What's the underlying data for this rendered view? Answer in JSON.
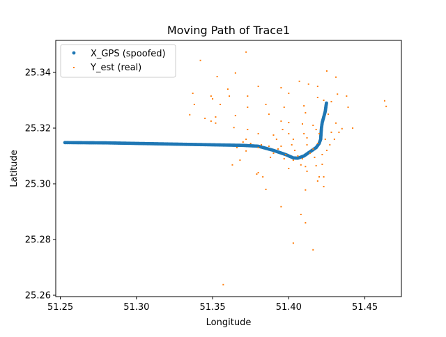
{
  "chart_data": {
    "type": "scatter",
    "title": "Moving Path of Trace1",
    "xlabel": "Longitude",
    "ylabel": "Latitude",
    "xlim": [
      51.247,
      51.474
    ],
    "ylim": [
      25.2595,
      25.3515
    ],
    "xticks": [
      "51.25",
      "51.30",
      "51.35",
      "51.40",
      "51.45"
    ],
    "yticks": [
      "25.26",
      "25.28",
      "25.30",
      "25.32",
      "25.34"
    ],
    "grid": false,
    "legend_position": "top-left",
    "series": [
      {
        "name": "X_GPS (spoofed)",
        "color": "#1f77b4",
        "marker": "circle",
        "polyline": [
          [
            51.253,
            25.3148
          ],
          [
            51.28,
            25.3147
          ],
          [
            51.3,
            25.3145
          ],
          [
            51.33,
            25.3142
          ],
          [
            51.35,
            25.314
          ],
          [
            51.37,
            25.3138
          ],
          [
            51.38,
            25.3135
          ],
          [
            51.39,
            25.312
          ],
          [
            51.398,
            25.3105
          ],
          [
            51.403,
            25.3093
          ],
          [
            51.406,
            25.3092
          ],
          [
            51.41,
            25.31
          ],
          [
            51.414,
            25.3115
          ],
          [
            51.418,
            25.313
          ],
          [
            51.42,
            25.3145
          ],
          [
            51.421,
            25.316
          ],
          [
            51.4212,
            25.318
          ],
          [
            51.4215,
            25.32
          ],
          [
            51.422,
            25.322
          ],
          [
            51.423,
            25.324
          ],
          [
            51.424,
            25.326
          ],
          [
            51.4245,
            25.328
          ],
          [
            51.4248,
            25.329
          ]
        ]
      },
      {
        "name": "Y_est (real)",
        "color": "#ff7f0e",
        "marker": "square",
        "points": [
          [
            51.372,
            25.3473
          ],
          [
            51.342,
            25.3443
          ],
          [
            51.365,
            25.3398
          ],
          [
            51.353,
            25.3385
          ],
          [
            51.431,
            25.3383
          ],
          [
            51.425,
            25.3405
          ],
          [
            51.407,
            25.3368
          ],
          [
            51.413,
            25.3358
          ],
          [
            51.36,
            25.334
          ],
          [
            51.38,
            25.335
          ],
          [
            51.395,
            25.3345
          ],
          [
            51.419,
            25.335
          ],
          [
            51.438,
            25.3315
          ],
          [
            51.463,
            25.3298
          ],
          [
            51.464,
            25.3278
          ],
          [
            51.337,
            25.3325
          ],
          [
            51.35,
            25.3305
          ],
          [
            51.349,
            25.3315
          ],
          [
            51.361,
            25.3315
          ],
          [
            51.373,
            25.3315
          ],
          [
            51.4,
            25.3325
          ],
          [
            51.419,
            25.331
          ],
          [
            51.423,
            25.33
          ],
          [
            51.432,
            25.3322
          ],
          [
            51.338,
            25.3285
          ],
          [
            51.355,
            25.3285
          ],
          [
            51.373,
            25.3275
          ],
          [
            51.385,
            25.3285
          ],
          [
            51.397,
            25.3275
          ],
          [
            51.41,
            25.328
          ],
          [
            51.428,
            25.3295
          ],
          [
            51.439,
            25.3275
          ],
          [
            51.335,
            25.3248
          ],
          [
            51.345,
            25.3235
          ],
          [
            51.352,
            25.324
          ],
          [
            51.365,
            25.3245
          ],
          [
            51.387,
            25.325
          ],
          [
            51.411,
            25.3255
          ],
          [
            51.426,
            25.325
          ],
          [
            51.349,
            25.3225
          ],
          [
            51.352,
            25.3218
          ],
          [
            51.395,
            25.3225
          ],
          [
            51.4,
            25.322
          ],
          [
            51.409,
            25.3215
          ],
          [
            51.416,
            25.321
          ],
          [
            51.431,
            25.3218
          ],
          [
            51.364,
            25.3202
          ],
          [
            51.373,
            25.3195
          ],
          [
            51.396,
            25.3195
          ],
          [
            51.418,
            25.3195
          ],
          [
            51.435,
            25.3198
          ],
          [
            51.442,
            25.32
          ],
          [
            51.38,
            25.318
          ],
          [
            51.39,
            25.3175
          ],
          [
            51.4,
            25.318
          ],
          [
            51.41,
            25.318
          ],
          [
            51.42,
            25.318
          ],
          [
            51.428,
            25.3185
          ],
          [
            51.433,
            25.3185
          ],
          [
            51.372,
            25.316
          ],
          [
            51.392,
            25.316
          ],
          [
            51.403,
            25.316
          ],
          [
            51.412,
            25.3165
          ],
          [
            51.424,
            25.316
          ],
          [
            51.43,
            25.316
          ],
          [
            51.37,
            25.315
          ],
          [
            51.375,
            25.3145
          ],
          [
            51.382,
            25.314
          ],
          [
            51.387,
            25.3135
          ],
          [
            51.395,
            25.3135
          ],
          [
            51.402,
            25.314
          ],
          [
            51.412,
            25.314
          ],
          [
            51.419,
            25.3145
          ],
          [
            51.427,
            25.314
          ],
          [
            51.366,
            25.313
          ],
          [
            51.38,
            25.313
          ],
          [
            51.393,
            25.3125
          ],
          [
            51.404,
            25.312
          ],
          [
            51.416,
            25.3125
          ],
          [
            51.425,
            25.312
          ],
          [
            51.372,
            25.3118
          ],
          [
            51.39,
            25.311
          ],
          [
            51.398,
            25.3105
          ],
          [
            51.406,
            25.31
          ],
          [
            51.414,
            25.311
          ],
          [
            51.422,
            25.3105
          ],
          [
            51.388,
            25.3095
          ],
          [
            51.397,
            25.309
          ],
          [
            51.403,
            25.3085
          ],
          [
            51.409,
            25.309
          ],
          [
            51.417,
            25.3095
          ],
          [
            51.368,
            25.3085
          ],
          [
            51.363,
            25.3068
          ],
          [
            51.408,
            25.3068
          ],
          [
            51.411,
            25.3062
          ],
          [
            51.418,
            25.3065
          ],
          [
            51.422,
            25.307
          ],
          [
            51.4,
            25.3055
          ],
          [
            51.38,
            25.304
          ],
          [
            51.379,
            25.3035
          ],
          [
            51.412,
            25.3045
          ],
          [
            51.42,
            25.3025
          ],
          [
            51.423,
            25.3025
          ],
          [
            51.383,
            25.3025
          ],
          [
            51.419,
            25.301
          ],
          [
            51.423,
            25.299
          ],
          [
            51.385,
            25.298
          ],
          [
            51.411,
            25.2978
          ],
          [
            51.395,
            25.2918
          ],
          [
            51.408,
            25.289
          ],
          [
            51.411,
            25.286
          ],
          [
            51.403,
            25.2787
          ],
          [
            51.416,
            25.2763
          ],
          [
            51.357,
            25.2638
          ]
        ]
      }
    ]
  }
}
